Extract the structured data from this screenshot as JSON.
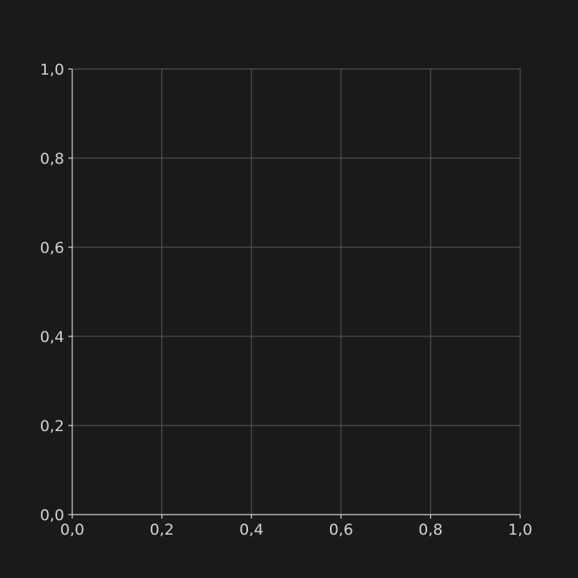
{
  "chart_data": {
    "type": "line",
    "title": "",
    "xlabel": "",
    "ylabel": "",
    "xlim": [
      0,
      1
    ],
    "ylim": [
      0,
      1
    ],
    "xticks": [
      0,
      0.2,
      0.4,
      0.6,
      0.8,
      1.0
    ],
    "yticks": [
      0,
      0.2,
      0.4,
      0.6,
      0.8,
      1.0
    ],
    "xtick_labels": [
      "0,0",
      "0,2",
      "0,4",
      "0,6",
      "0,8",
      "1,0"
    ],
    "ytick_labels": [
      "0,0",
      "0,2",
      "0,4",
      "0,6",
      "0,8",
      "1,0"
    ],
    "series": [],
    "grid": true,
    "colors": {
      "background": "#1a1a1a",
      "grid": "#5a5a5a",
      "axis": "#d6d6d6",
      "text": "#d2d2d2"
    }
  }
}
